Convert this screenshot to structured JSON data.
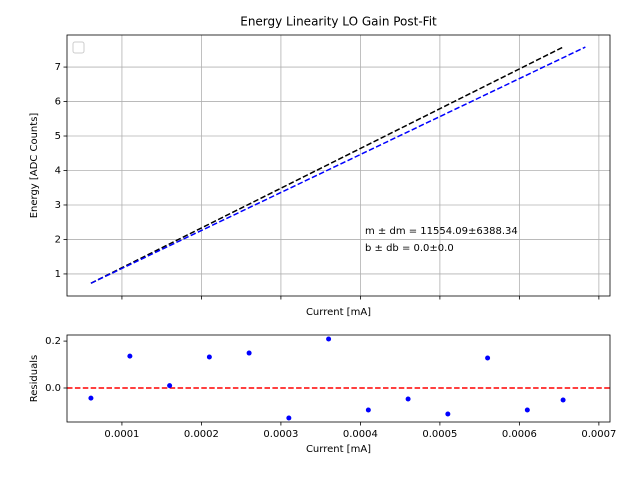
{
  "chart_data": [
    {
      "type": "line",
      "title": "Energy Linearity LO Gain Post-Fit",
      "x_label": "Current [mA]",
      "y_label": "Energy [ADC Counts]",
      "xlim": [
        3.09e-05,
        0.000714
      ],
      "ylim": [
        0.36,
        7.93
      ],
      "xticks": [
        0.0001,
        0.0002,
        0.0003,
        0.0004,
        0.0005,
        0.0006,
        0.0007
      ],
      "yticks": [
        1,
        2,
        3,
        4,
        5,
        6,
        7
      ],
      "grid": true,
      "series": [
        {
          "color": "#000000",
          "x": [
            6.1e-05,
            0.000655
          ],
          "values": [
            0.73,
            7.58
          ]
        },
        {
          "color": "#0000ff",
          "x": [
            6.1e-05,
            0.000683
          ],
          "values": [
            0.73,
            7.58
          ]
        }
      ],
      "annotations": [
        "m ± dm = 11554.09±6388.34",
        "b ± db = 0.0±0.0"
      ]
    },
    {
      "type": "scatter",
      "x_label": "Current [mA]",
      "y_label": "Residuals",
      "xlim": [
        3.09e-05,
        0.000714
      ],
      "ylim": [
        -0.145,
        0.226
      ],
      "xticks": [
        0.0001,
        0.0002,
        0.0003,
        0.0004,
        0.0005,
        0.0006,
        0.0007
      ],
      "yticks": [
        {
          "value": 0,
          "label": "0.0"
        },
        0.2
      ],
      "grid": false,
      "hline": 0,
      "hline_color": "#ff0000",
      "series": [
        {
          "color": "#0000ff",
          "x": [
            6.1e-05,
            0.00011,
            0.00016,
            0.00021,
            0.00026,
            0.00031,
            0.00036,
            0.00041,
            0.00046,
            0.00051,
            0.00056,
            0.00061,
            0.000655
          ],
          "values": [
            -0.043,
            0.136,
            0.01,
            0.132,
            0.149,
            -0.128,
            0.209,
            -0.094,
            -0.047,
            -0.111,
            0.128,
            -0.094,
            -0.051
          ]
        }
      ]
    }
  ]
}
